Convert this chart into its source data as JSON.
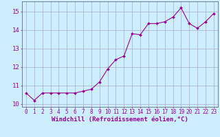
{
  "x": [
    0,
    1,
    2,
    3,
    4,
    5,
    6,
    7,
    8,
    9,
    10,
    11,
    12,
    13,
    14,
    15,
    16,
    17,
    18,
    19,
    20,
    21,
    22,
    23
  ],
  "y": [
    10.6,
    10.2,
    10.6,
    10.6,
    10.6,
    10.6,
    10.6,
    10.7,
    10.8,
    11.2,
    11.9,
    12.4,
    12.6,
    13.8,
    13.75,
    14.35,
    14.35,
    14.45,
    14.7,
    15.2,
    14.35,
    14.1,
    14.45,
    14.9
  ],
  "line_color": "#990099",
  "marker": "D",
  "marker_size": 2.0,
  "line_width": 0.8,
  "background_color": "#cceeff",
  "grid_color": "#aaaacc",
  "xlabel": "Windchill (Refroidissement éolien,°C)",
  "xlabel_fontsize": 6.5,
  "ylabel_ticks": [
    10,
    11,
    12,
    13,
    14,
    15
  ],
  "xlim": [
    -0.5,
    23.5
  ],
  "ylim": [
    9.85,
    15.55
  ],
  "xtick_labels": [
    "0",
    "1",
    "2",
    "3",
    "4",
    "5",
    "6",
    "7",
    "8",
    "9",
    "10",
    "11",
    "12",
    "13",
    "14",
    "15",
    "16",
    "17",
    "18",
    "19",
    "20",
    "21",
    "22",
    "23"
  ],
  "tick_fontsize": 5.5,
  "ytick_fontsize": 6.5,
  "spine_color": "#666688"
}
